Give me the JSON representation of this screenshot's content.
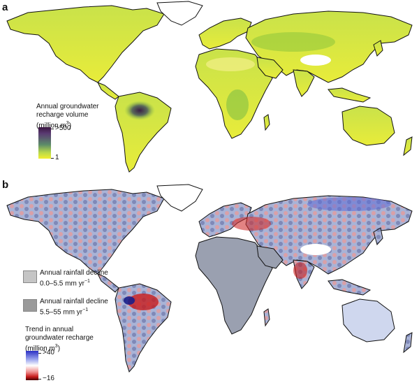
{
  "panel_a": {
    "letter": "a",
    "legend_title_line1": "Annual groundwater",
    "legend_title_line2": "recharge volume",
    "legend_title_line3": "(million m",
    "legend_title_sup": "3",
    "legend_title_end": ")",
    "max_label": ">500",
    "min_label": "1",
    "colors": {
      "low": "#f3ef30",
      "mid": "#7fbf3a",
      "high": "#3a1540"
    }
  },
  "panel_b": {
    "letter": "b",
    "decline_1_line1": "Annual rainfall decline",
    "decline_1_line2": "0.0–5.5 mm yr",
    "decline_1_sup": "−1",
    "decline_2_line1": "Annual rainfall decline",
    "decline_2_line2": "5.5–55 mm yr",
    "decline_2_sup": "−1",
    "legend_title_line1": "Trend in annual",
    "legend_title_line2": "groundwater recharge",
    "legend_title_line3": "(million m",
    "legend_title_sup": "3",
    "legend_title_end": ")",
    "max_label": ">40",
    "min_label": "−16",
    "colors": {
      "positive": "#2a2fc4",
      "zero": "#ffffff",
      "negative": "#c81c1c",
      "decline_light": "#c5c5c5",
      "decline_dark": "#9a9a9a"
    }
  }
}
